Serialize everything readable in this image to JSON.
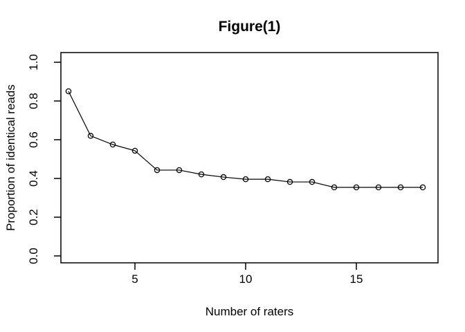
{
  "chart_data": {
    "type": "line",
    "title": "Figure(1)",
    "xlabel": "Number of raters",
    "ylabel": "Proportion of identical reads",
    "x": [
      2,
      3,
      4,
      5,
      6,
      7,
      8,
      9,
      10,
      11,
      12,
      13,
      14,
      15,
      16,
      17,
      18
    ],
    "y": [
      0.85,
      0.62,
      0.575,
      0.543,
      0.443,
      0.443,
      0.421,
      0.407,
      0.396,
      0.396,
      0.382,
      0.382,
      0.354,
      0.354,
      0.354,
      0.354,
      0.354
    ],
    "x_tick_labels": [
      "5",
      "10",
      "15"
    ],
    "y_tick_labels": [
      "0.0",
      "0.2",
      "0.4",
      "0.6",
      "0.8",
      "1.0"
    ],
    "xlim": [
      1.36,
      18.64
    ],
    "ylim": [
      0.0,
      1.0
    ],
    "marker": "open-circle",
    "grid": false,
    "legend": null,
    "line_color": "#000000",
    "axis_color": "#000000",
    "text_color": "#000000",
    "background_color": "#ffffff"
  }
}
